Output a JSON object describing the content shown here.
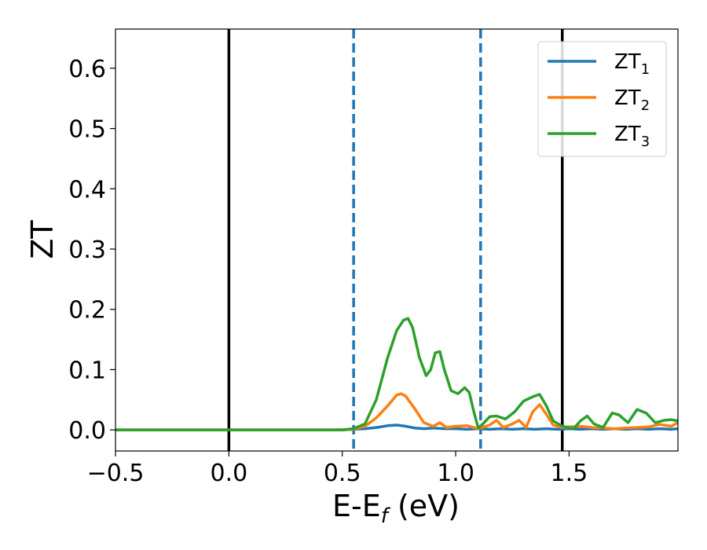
{
  "chart_data": {
    "type": "line",
    "xlabel_main": "E-E",
    "xlabel_sub": "f",
    "xlabel_unit": " (eV)",
    "ylabel": "ZT",
    "xlim": [
      -0.5,
      1.98
    ],
    "ylim": [
      -0.035,
      0.665
    ],
    "x_ticks": [
      -0.5,
      0.0,
      0.5,
      1.0,
      1.5
    ],
    "x_tick_labels": [
      "−0.5",
      "0.0",
      "0.5",
      "1.0",
      "1.5"
    ],
    "y_ticks": [
      0.0,
      0.1,
      0.2,
      0.3,
      0.4,
      0.5,
      0.6
    ],
    "y_tick_labels": [
      "0.0",
      "0.1",
      "0.2",
      "0.3",
      "0.4",
      "0.5",
      "0.6"
    ],
    "grid": false,
    "legend_position": "top-right",
    "vlines": [
      {
        "x": 0.0,
        "style": "solid",
        "color": "#000000"
      },
      {
        "x": 1.47,
        "style": "solid",
        "color": "#000000"
      },
      {
        "x": 0.55,
        "style": "dashed",
        "color": "#1f77b4"
      },
      {
        "x": 1.11,
        "style": "dashed",
        "color": "#1f77b4"
      }
    ],
    "series": [
      {
        "name": "ZT",
        "sub": "1",
        "color": "#1f77b4",
        "x": [
          -0.5,
          0.5,
          0.55,
          0.6,
          0.65,
          0.7,
          0.74,
          0.78,
          0.82,
          0.86,
          0.9,
          0.95,
          1.0,
          1.05,
          1.1,
          1.15,
          1.2,
          1.25,
          1.3,
          1.35,
          1.4,
          1.45,
          1.5,
          1.55,
          1.6,
          1.65,
          1.7,
          1.75,
          1.8,
          1.85,
          1.9,
          1.95,
          1.98
        ],
        "values": [
          0.0,
          0.0,
          0.001,
          0.002,
          0.004,
          0.007,
          0.008,
          0.006,
          0.003,
          0.002,
          0.003,
          0.002,
          0.002,
          0.001,
          0.002,
          0.001,
          0.002,
          0.001,
          0.002,
          0.001,
          0.002,
          0.001,
          0.002,
          0.001,
          0.002,
          0.001,
          0.002,
          0.001,
          0.002,
          0.001,
          0.002,
          0.001,
          0.002
        ]
      },
      {
        "name": "ZT",
        "sub": "2",
        "color": "#ff7f0e",
        "x": [
          -0.5,
          0.5,
          0.55,
          0.6,
          0.65,
          0.7,
          0.74,
          0.76,
          0.78,
          0.82,
          0.86,
          0.9,
          0.93,
          0.96,
          1.0,
          1.05,
          1.1,
          1.15,
          1.18,
          1.21,
          1.25,
          1.28,
          1.31,
          1.34,
          1.37,
          1.4,
          1.43,
          1.47,
          1.5,
          1.55,
          1.6,
          1.65,
          1.7,
          1.75,
          1.8,
          1.85,
          1.9,
          1.95,
          1.98
        ],
        "values": [
          0.0,
          0.0,
          0.001,
          0.006,
          0.02,
          0.04,
          0.058,
          0.06,
          0.056,
          0.035,
          0.012,
          0.006,
          0.012,
          0.004,
          0.006,
          0.007,
          0.002,
          0.008,
          0.016,
          0.004,
          0.01,
          0.016,
          0.004,
          0.03,
          0.042,
          0.026,
          0.008,
          0.004,
          0.005,
          0.006,
          0.004,
          0.003,
          0.002,
          0.003,
          0.004,
          0.005,
          0.009,
          0.006,
          0.012
        ]
      },
      {
        "name": "ZT",
        "sub": "3",
        "color": "#2ca02c",
        "x": [
          -0.5,
          0.5,
          0.55,
          0.6,
          0.65,
          0.7,
          0.74,
          0.77,
          0.79,
          0.81,
          0.84,
          0.87,
          0.89,
          0.91,
          0.93,
          0.95,
          0.98,
          1.01,
          1.04,
          1.06,
          1.08,
          1.1,
          1.12,
          1.15,
          1.18,
          1.22,
          1.26,
          1.3,
          1.34,
          1.37,
          1.4,
          1.43,
          1.47,
          1.52,
          1.55,
          1.58,
          1.61,
          1.65,
          1.69,
          1.72,
          1.76,
          1.8,
          1.84,
          1.88,
          1.92,
          1.95,
          1.98
        ],
        "values": [
          0.0,
          0.0,
          0.002,
          0.01,
          0.05,
          0.12,
          0.165,
          0.182,
          0.185,
          0.17,
          0.12,
          0.09,
          0.1,
          0.128,
          0.13,
          0.1,
          0.065,
          0.06,
          0.07,
          0.062,
          0.03,
          0.003,
          0.01,
          0.022,
          0.023,
          0.018,
          0.03,
          0.048,
          0.055,
          0.059,
          0.04,
          0.015,
          0.006,
          0.002,
          0.015,
          0.023,
          0.01,
          0.004,
          0.028,
          0.025,
          0.012,
          0.034,
          0.028,
          0.012,
          0.016,
          0.017,
          0.015
        ]
      }
    ]
  }
}
